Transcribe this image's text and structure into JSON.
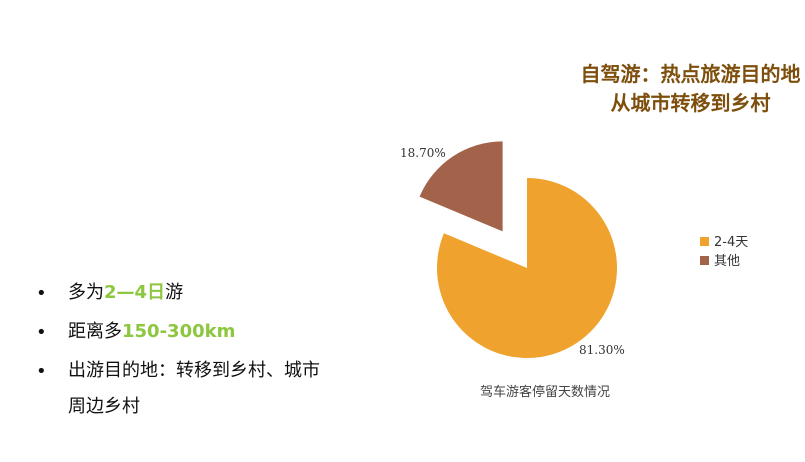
{
  "title": "自驾游：热点旅游目的地从城市转移到乡村",
  "bullets": [
    {
      "parts": [
        {
          "text": "多为",
          "hl": false
        },
        {
          "text": "2—4日",
          "hl": true
        },
        {
          "text": "游",
          "hl": false
        }
      ]
    },
    {
      "parts": [
        {
          "text": "距离多",
          "hl": false
        },
        {
          "text": "150-300km",
          "hl": true
        }
      ]
    },
    {
      "parts": [
        {
          "text": "出游目的地：转移到乡村、城市",
          "hl": false
        }
      ],
      "line2": "周边乡村"
    }
  ],
  "bullet_symbol": "•",
  "colors": {
    "title": "#7d4e0c",
    "highlight": "#8dc63f"
  },
  "chart_data": {
    "type": "pie",
    "title": "驾车游客停留天数情况",
    "slices": [
      {
        "name": "2-4天",
        "value": 81.3,
        "label": "81.30%",
        "color": "#f0a22e",
        "exploded": false
      },
      {
        "name": "其他",
        "value": 18.7,
        "label": "18.70%",
        "color": "#a3634b",
        "exploded": true
      }
    ],
    "legend": {
      "position": "right"
    }
  }
}
